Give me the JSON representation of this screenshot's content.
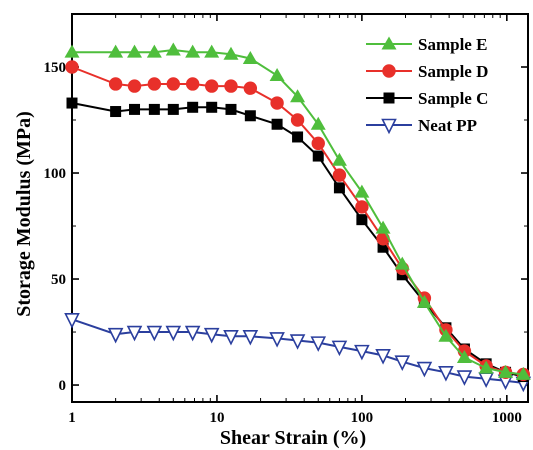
{
  "chart_data": {
    "type": "line",
    "title": "",
    "xlabel": "Shear Strain (%)",
    "ylabel": "Storage Modulus (MPa)",
    "xscale": "log",
    "xlim": [
      1,
      1400
    ],
    "ylim": [
      -8,
      175
    ],
    "xticks": [
      1,
      10,
      100,
      1000
    ],
    "xtick_labels": [
      "1",
      "10",
      "100",
      "1000"
    ],
    "yticks": [
      0,
      50,
      100,
      150
    ],
    "ytick_labels": [
      "0",
      "50",
      "100",
      "150"
    ],
    "grid": false,
    "legend_position": "top-right",
    "series": [
      {
        "name": "Sample E",
        "color": "#4fbe3c",
        "marker": "triangle-up",
        "x": [
          1,
          2,
          2.7,
          3.7,
          5,
          6.8,
          9.2,
          12.5,
          17,
          26,
          36,
          50,
          70,
          100,
          140,
          190,
          270,
          380,
          510,
          720,
          980,
          1300
        ],
        "y": [
          157,
          157,
          157,
          157,
          158,
          157,
          157,
          156,
          154,
          146,
          136,
          123,
          106,
          91,
          74,
          57,
          39,
          23,
          13,
          8,
          6,
          5
        ]
      },
      {
        "name": "Sample D",
        "color": "#e8302a",
        "marker": "circle",
        "x": [
          1,
          2,
          2.7,
          3.7,
          5,
          6.8,
          9.2,
          12.5,
          17,
          26,
          36,
          50,
          70,
          100,
          140,
          190,
          270,
          380,
          510,
          720,
          980,
          1300
        ],
        "y": [
          150,
          142,
          141,
          142,
          142,
          142,
          141,
          141,
          140,
          133,
          125,
          114,
          99,
          84,
          69,
          55,
          41,
          26,
          16,
          9,
          6,
          5
        ]
      },
      {
        "name": "Sample C",
        "color": "#000000",
        "marker": "square",
        "x": [
          1,
          2,
          2.7,
          3.7,
          5,
          6.8,
          9.2,
          12.5,
          17,
          26,
          36,
          50,
          70,
          100,
          140,
          190,
          270,
          380,
          510,
          720,
          980,
          1300
        ],
        "y": [
          133,
          129,
          130,
          130,
          130,
          131,
          131,
          130,
          127,
          123,
          117,
          108,
          93,
          78,
          65,
          52,
          39,
          27,
          17,
          10,
          6,
          4
        ]
      },
      {
        "name": "Neat PP",
        "color": "#2b3f9e",
        "marker": "triangle-down",
        "x": [
          1,
          2,
          2.7,
          3.7,
          5,
          6.8,
          9.2,
          12.5,
          17,
          26,
          36,
          50,
          70,
          100,
          140,
          190,
          270,
          380,
          510,
          720,
          980,
          1300
        ],
        "y": [
          31,
          24,
          25,
          25,
          25,
          25,
          24,
          23,
          23,
          22,
          21,
          20,
          18,
          16,
          14,
          11,
          8,
          6,
          4,
          3,
          2,
          1
        ]
      }
    ]
  }
}
